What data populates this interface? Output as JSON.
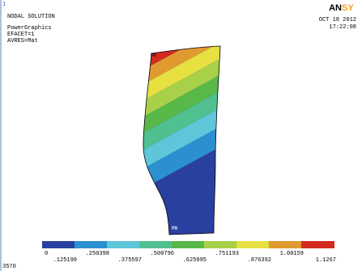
{
  "window": {
    "number": "1",
    "title": "NODAL SOLUTION",
    "info": [
      "PowerGraphics",
      "EFACET=1",
      "AVRES=Mat"
    ],
    "date": "OCT 18 2012",
    "time": "17:22:08",
    "logo_a": "AN",
    "logo_b": "SY",
    "status": "3570"
  },
  "plot": {
    "max_label": "MX",
    "min_label": "MN"
  },
  "legend": {
    "labels": [
      "0",
      ".125199",
      ".250398",
      ".375597",
      ".500796",
      ".625995",
      ".751193",
      ".876392",
      "1.00159",
      "1.1267"
    ]
  }
}
